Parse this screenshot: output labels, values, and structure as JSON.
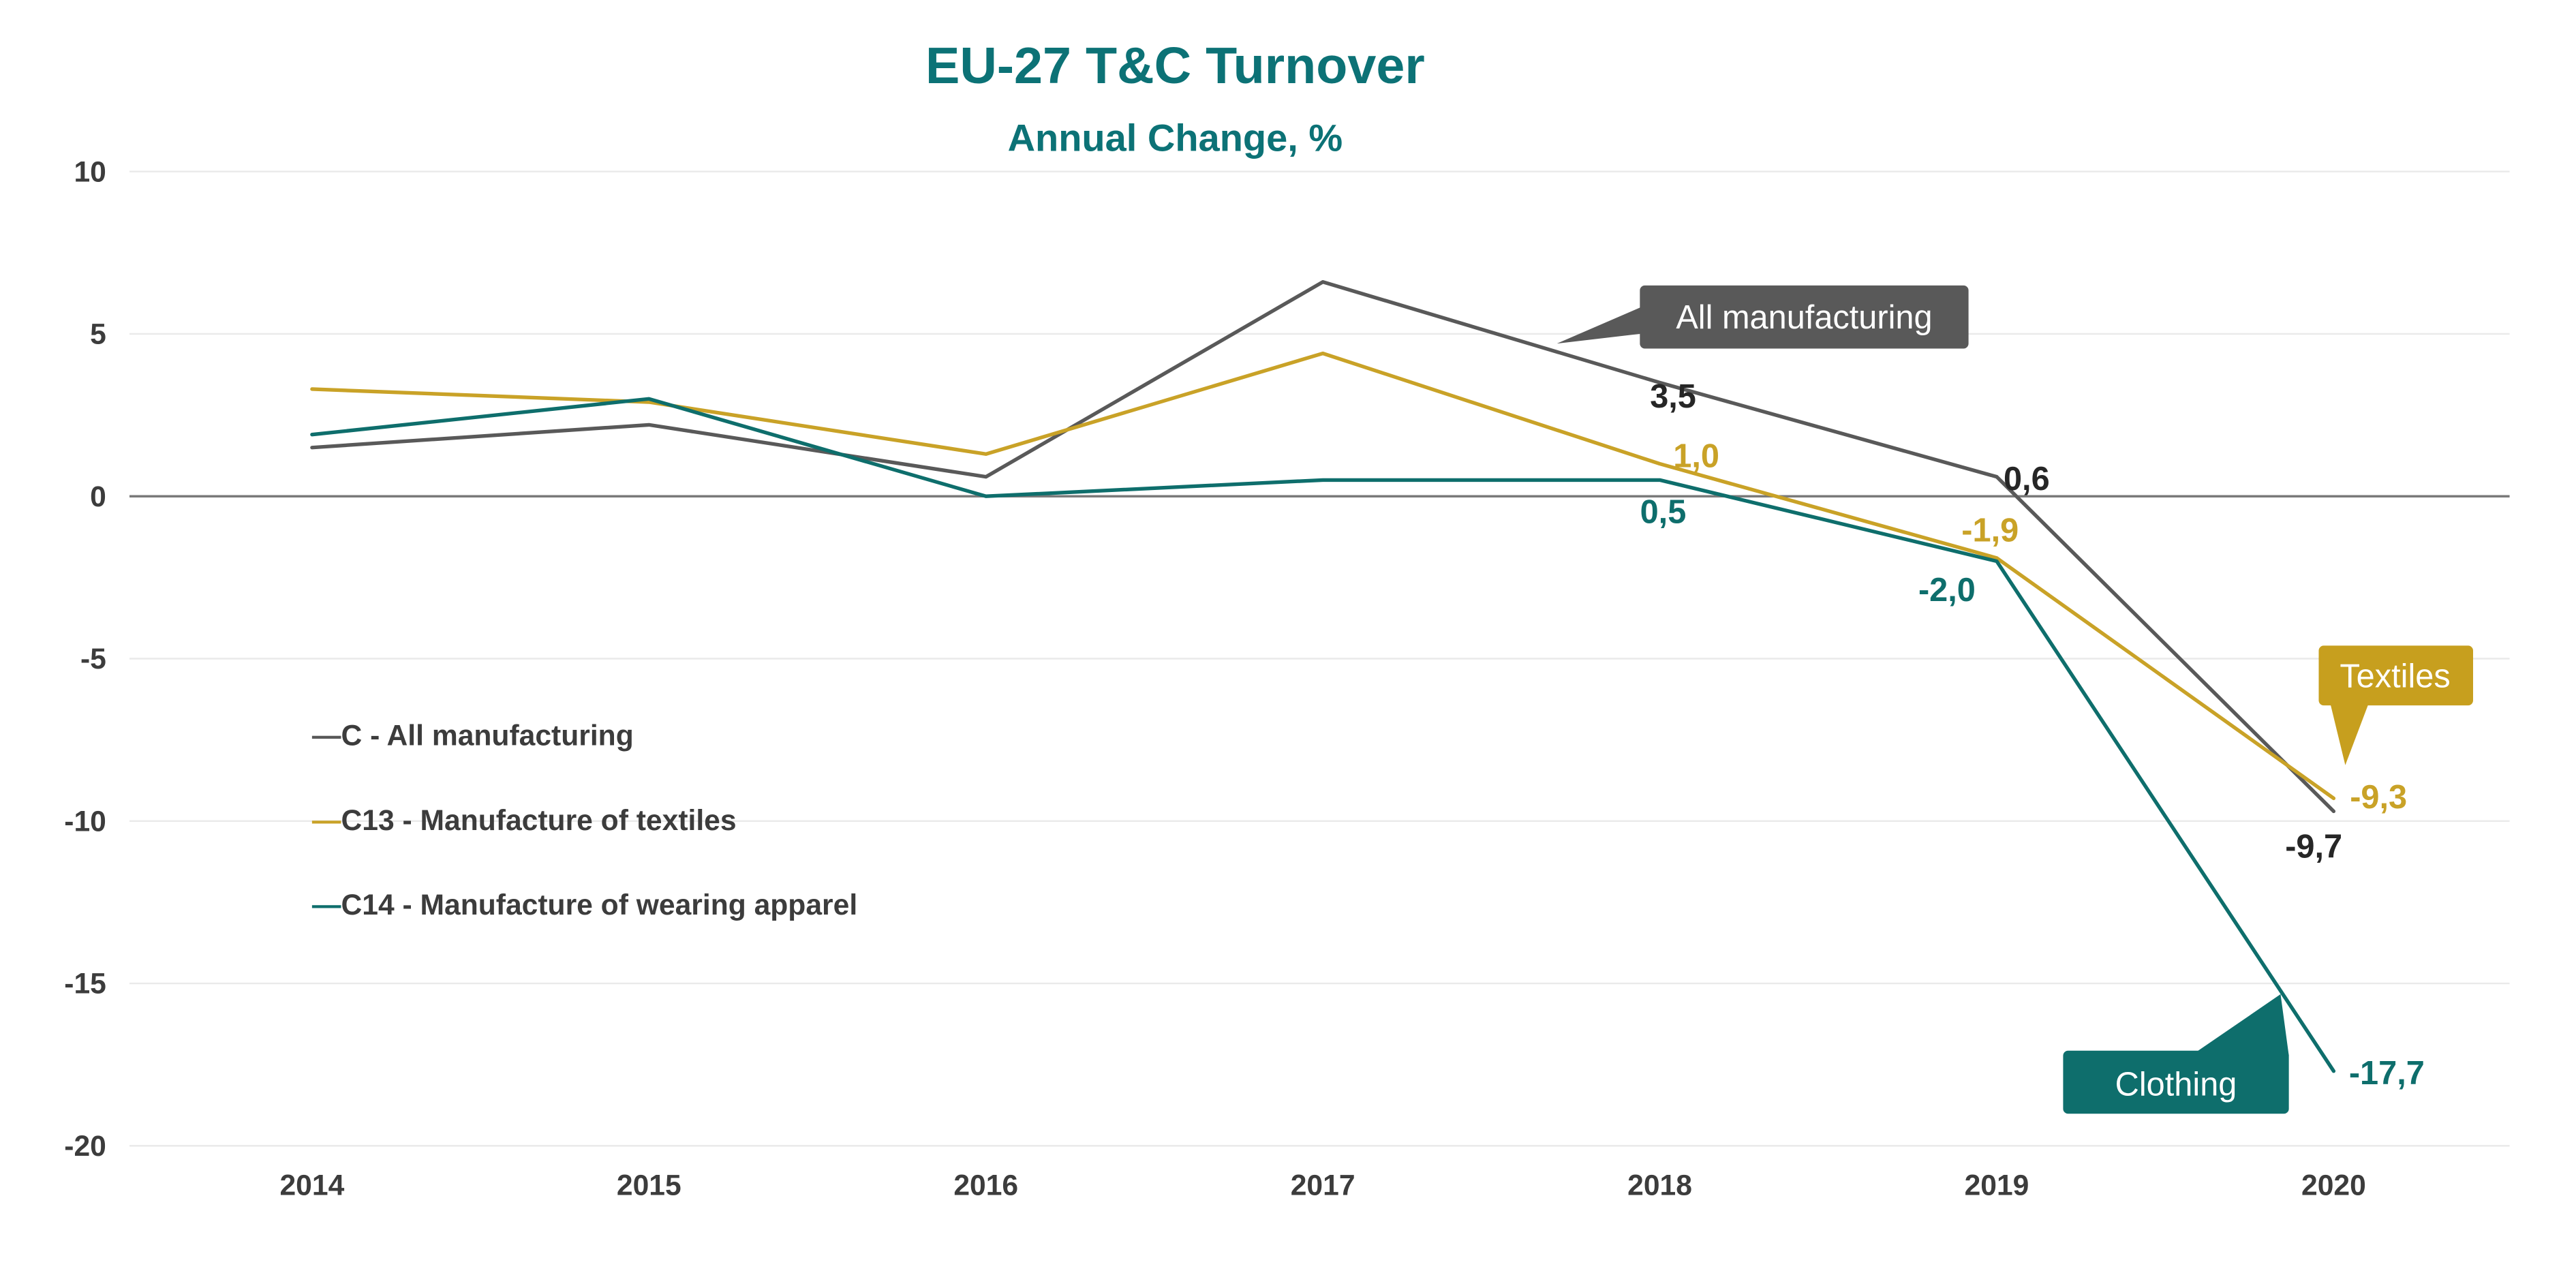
{
  "title": "EU-27 T&C Turnover",
  "subtitle": "Annual Change, %",
  "theme": {
    "title_color": "#0C7276",
    "axis_text_color": "#3C3C3C",
    "legend_text_color": "#3C3C3C",
    "grid_color": "#EAEAEA",
    "zero_line_color": "#7A7A7A",
    "background": "#FFFFFF"
  },
  "chart_data": {
    "type": "line",
    "title": "EU-27 T&C Turnover",
    "subtitle": "Annual Change, %",
    "xlabel": "",
    "ylabel": "",
    "categories": [
      "2014",
      "2015",
      "2016",
      "2017",
      "2018",
      "2019",
      "2020"
    ],
    "ylim": [
      -20,
      10
    ],
    "yticks": [
      10,
      5,
      0,
      -5,
      -10,
      -15,
      -20
    ],
    "grid": "horizontal",
    "legend_position": "inside-left",
    "series": [
      {
        "id": "manufacturing",
        "name": "C - All manufacturing",
        "color": "#595959",
        "label_color": "#262626",
        "values": [
          1.5,
          2.2,
          0.6,
          6.6,
          3.5,
          0.6,
          -9.7
        ],
        "point_labels": [
          {
            "index": 4,
            "text": "3,5",
            "dx": 8,
            "dy": 15,
            "anchor": "middle"
          },
          {
            "index": 5,
            "text": "0,6",
            "dx": 18,
            "dy": 8,
            "anchor": "middle"
          },
          {
            "index": 6,
            "text": "-9,7",
            "dx": -12,
            "dy": 28,
            "anchor": "middle"
          }
        ]
      },
      {
        "id": "textiles",
        "name": "C13 - Manufacture of textiles",
        "color": "#C9A227",
        "label_color": "#C9A227",
        "values": [
          3.3,
          2.9,
          1.3,
          4.4,
          1.0,
          -1.9,
          -9.3
        ],
        "point_labels": [
          {
            "index": 4,
            "text": "1,0",
            "dx": 22,
            "dy": 2,
            "anchor": "middle"
          },
          {
            "index": 5,
            "text": "-1,9",
            "dx": -4,
            "dy": -10,
            "anchor": "middle"
          },
          {
            "index": 6,
            "text": "-9,3",
            "dx": 27,
            "dy": 6,
            "anchor": "middle"
          }
        ]
      },
      {
        "id": "apparel",
        "name": "C14 - Manufacture of wearing apparel",
        "color": "#0E6E6C",
        "label_color": "#0E6E6C",
        "values": [
          1.9,
          3.0,
          0.0,
          0.5,
          0.5,
          -2.0,
          -17.7
        ],
        "point_labels": [
          {
            "index": 4,
            "text": "0,5",
            "dx": 2,
            "dy": 26,
            "anchor": "middle"
          },
          {
            "index": 5,
            "text": "-2,0",
            "dx": -30,
            "dy": 24,
            "anchor": "middle"
          },
          {
            "index": 6,
            "text": "-17,7",
            "dx": 32,
            "dy": 8,
            "anchor": "middle"
          }
        ]
      }
    ]
  },
  "annotations": [
    {
      "id": "all-manufacturing",
      "label": "All manufacturing",
      "color": "#595959"
    },
    {
      "id": "textiles",
      "label": "Textiles",
      "color": "#C79F1E"
    },
    {
      "id": "clothing",
      "label": "Clothing",
      "color": "#0E6E6C"
    }
  ]
}
